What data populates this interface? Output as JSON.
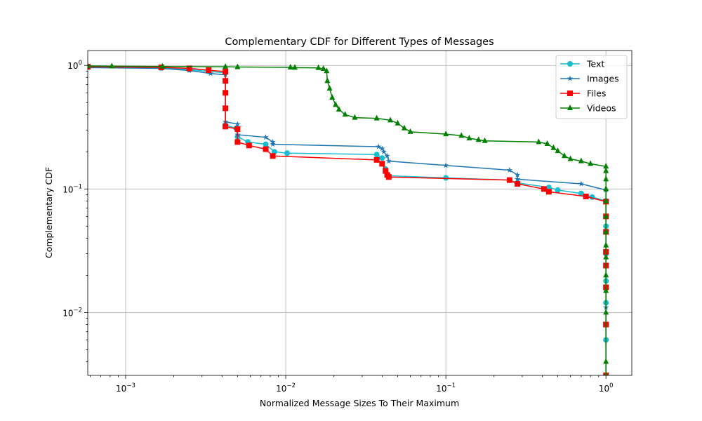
{
  "chart_data": {
    "type": "line",
    "title": "Complementary CDF for Different Types of Messages",
    "xlabel": "Normalized Message Sizes To Their Maximum",
    "ylabel": "Complementary CDF",
    "xscale": "log",
    "yscale": "log",
    "xlim": [
      0.00058,
      1.45
    ],
    "ylim": [
      0.0031,
      1.32
    ],
    "x_ticks": [
      {
        "value": 0.001,
        "base": "10",
        "exp": "−3"
      },
      {
        "value": 0.01,
        "base": "10",
        "exp": "−2"
      },
      {
        "value": 0.1,
        "base": "10",
        "exp": "−1"
      },
      {
        "value": 1,
        "base": "10",
        "exp": "0"
      }
    ],
    "y_ticks": [
      {
        "value": 0.01,
        "base": "10",
        "exp": "−2"
      },
      {
        "value": 0.1,
        "base": "10",
        "exp": "−1"
      },
      {
        "value": 1,
        "base": "10",
        "exp": "0"
      }
    ],
    "grid": true,
    "legend_position": "top-right",
    "series": [
      {
        "name": "Text",
        "color": "#17becf",
        "marker": "circle",
        "points": [
          [
            0.00058,
            0.975
          ],
          [
            0.00167,
            0.955
          ],
          [
            0.0025,
            0.925
          ],
          [
            0.0033,
            0.895
          ],
          [
            0.0042,
            0.87
          ],
          [
            0.0042,
            0.33
          ],
          [
            0.0049,
            0.31
          ],
          [
            0.005,
            0.265
          ],
          [
            0.0058,
            0.24
          ],
          [
            0.0075,
            0.23
          ],
          [
            0.0085,
            0.2
          ],
          [
            0.0102,
            0.195
          ],
          [
            0.037,
            0.19
          ],
          [
            0.04,
            0.178
          ],
          [
            0.042,
            0.145
          ],
          [
            0.044,
            0.128
          ],
          [
            0.1,
            0.123
          ],
          [
            0.25,
            0.118
          ],
          [
            0.28,
            0.112
          ],
          [
            0.44,
            0.103
          ],
          [
            0.5,
            0.098
          ],
          [
            0.7,
            0.092
          ],
          [
            0.82,
            0.086
          ],
          [
            1.0,
            0.08
          ],
          [
            1.0,
            0.05
          ],
          [
            1.0,
            0.03
          ],
          [
            1.0,
            0.018
          ],
          [
            1.0,
            0.012
          ],
          [
            1.0,
            0.006
          ],
          [
            1.0,
            0.0031
          ]
        ]
      },
      {
        "name": "Images",
        "color": "#1f77b4",
        "marker": "star",
        "points": [
          [
            0.00058,
            0.96
          ],
          [
            0.00167,
            0.945
          ],
          [
            0.0025,
            0.91
          ],
          [
            0.0034,
            0.86
          ],
          [
            0.0042,
            0.84
          ],
          [
            0.0042,
            0.35
          ],
          [
            0.005,
            0.335
          ],
          [
            0.005,
            0.275
          ],
          [
            0.0075,
            0.262
          ],
          [
            0.0083,
            0.24
          ],
          [
            0.0083,
            0.23
          ],
          [
            0.038,
            0.22
          ],
          [
            0.04,
            0.212
          ],
          [
            0.041,
            0.2
          ],
          [
            0.043,
            0.185
          ],
          [
            0.044,
            0.168
          ],
          [
            0.1,
            0.155
          ],
          [
            0.25,
            0.142
          ],
          [
            0.28,
            0.13
          ],
          [
            0.28,
            0.12
          ],
          [
            0.7,
            0.11
          ],
          [
            1.0,
            0.098
          ],
          [
            1.0,
            0.06
          ],
          [
            1.0,
            0.03
          ],
          [
            1.0,
            0.011
          ],
          [
            1.0,
            0.0031
          ]
        ]
      },
      {
        "name": "Files",
        "color": "#ff0000",
        "marker": "square",
        "points": [
          [
            0.00058,
            0.975
          ],
          [
            0.00167,
            0.965
          ],
          [
            0.0025,
            0.945
          ],
          [
            0.0033,
            0.915
          ],
          [
            0.0042,
            0.89
          ],
          [
            0.0042,
            0.75
          ],
          [
            0.0042,
            0.6
          ],
          [
            0.0042,
            0.45
          ],
          [
            0.0042,
            0.32
          ],
          [
            0.005,
            0.305
          ],
          [
            0.005,
            0.24
          ],
          [
            0.0059,
            0.225
          ],
          [
            0.0075,
            0.21
          ],
          [
            0.0083,
            0.185
          ],
          [
            0.037,
            0.172
          ],
          [
            0.04,
            0.16
          ],
          [
            0.042,
            0.14
          ],
          [
            0.043,
            0.13
          ],
          [
            0.044,
            0.125
          ],
          [
            0.25,
            0.118
          ],
          [
            0.28,
            0.11
          ],
          [
            0.41,
            0.1
          ],
          [
            0.44,
            0.095
          ],
          [
            0.75,
            0.087
          ],
          [
            1.0,
            0.079
          ],
          [
            1.0,
            0.06
          ],
          [
            1.0,
            0.045
          ],
          [
            1.0,
            0.031
          ],
          [
            1.0,
            0.024
          ],
          [
            1.0,
            0.016
          ],
          [
            1.0,
            0.008
          ],
          [
            1.0,
            0.0031
          ]
        ]
      },
      {
        "name": "Videos",
        "color": "#008000",
        "marker": "triangle",
        "points": [
          [
            0.00058,
            0.99
          ],
          [
            0.00082,
            0.985
          ],
          [
            0.0017,
            0.98
          ],
          [
            0.0042,
            0.975
          ],
          [
            0.005,
            0.97
          ],
          [
            0.0107,
            0.965
          ],
          [
            0.0114,
            0.96
          ],
          [
            0.016,
            0.955
          ],
          [
            0.0172,
            0.94
          ],
          [
            0.018,
            0.9
          ],
          [
            0.0182,
            0.75
          ],
          [
            0.0188,
            0.65
          ],
          [
            0.0195,
            0.55
          ],
          [
            0.0205,
            0.48
          ],
          [
            0.0215,
            0.44
          ],
          [
            0.0235,
            0.4
          ],
          [
            0.027,
            0.378
          ],
          [
            0.037,
            0.373
          ],
          [
            0.045,
            0.36
          ],
          [
            0.05,
            0.34
          ],
          [
            0.055,
            0.31
          ],
          [
            0.06,
            0.29
          ],
          [
            0.1,
            0.278
          ],
          [
            0.125,
            0.27
          ],
          [
            0.14,
            0.257
          ],
          [
            0.16,
            0.25
          ],
          [
            0.175,
            0.245
          ],
          [
            0.38,
            0.24
          ],
          [
            0.43,
            0.232
          ],
          [
            0.47,
            0.215
          ],
          [
            0.5,
            0.203
          ],
          [
            0.55,
            0.185
          ],
          [
            0.6,
            0.175
          ],
          [
            0.7,
            0.168
          ],
          [
            0.8,
            0.16
          ],
          [
            1.0,
            0.152
          ],
          [
            1.0,
            0.14
          ],
          [
            1.0,
            0.12
          ],
          [
            1.0,
            0.1
          ],
          [
            1.0,
            0.08
          ],
          [
            1.0,
            0.06
          ],
          [
            1.0,
            0.045
          ],
          [
            1.0,
            0.035
          ],
          [
            1.0,
            0.028
          ],
          [
            1.0,
            0.02
          ],
          [
            1.0,
            0.015
          ],
          [
            1.0,
            0.01
          ],
          [
            1.0,
            0.004
          ],
          [
            1.0,
            0.0031
          ]
        ]
      }
    ]
  }
}
